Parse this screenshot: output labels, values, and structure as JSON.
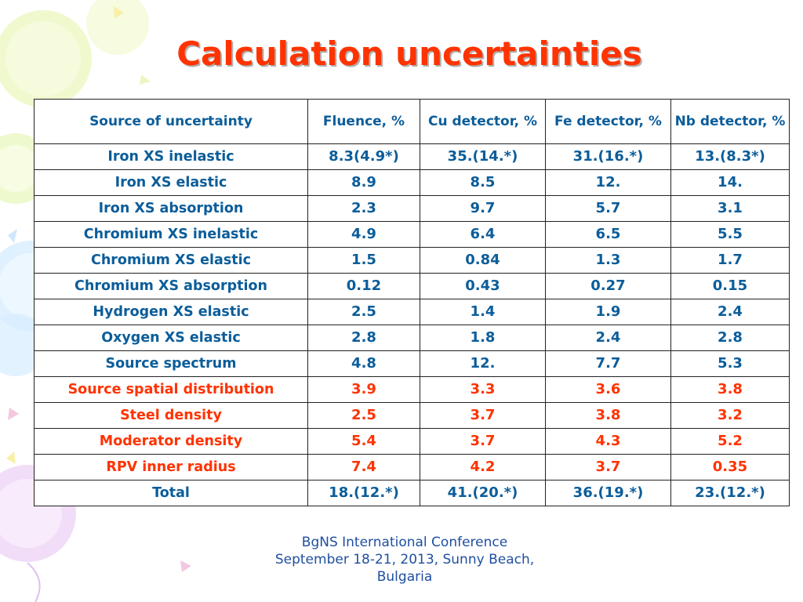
{
  "slide": {
    "title": "Calculation uncertainties"
  },
  "table": {
    "headers": [
      "Source of uncertainty",
      "Fluence, %",
      "Cu detector, %",
      "Fe detector, %",
      "Nb detector, %"
    ],
    "rows": [
      {
        "source": "Iron XS inelastic",
        "fluence": "8.3(4.9*)",
        "cu": "35.(14.*)",
        "fe": "31.(16.*)",
        "nb": "13.(8.3*)"
      },
      {
        "source": "Iron XS elastic",
        "fluence": "8.9",
        "cu": "8.5",
        "fe": "12.",
        "nb": "14."
      },
      {
        "source": "Iron XS absorption",
        "fluence": "2.3",
        "cu": "9.7",
        "fe": "5.7",
        "nb": "3.1"
      },
      {
        "source": "Chromium XS inelastic",
        "fluence": "4.9",
        "cu": "6.4",
        "fe": "6.5",
        "nb": "5.5"
      },
      {
        "source": "Chromium XS elastic",
        "fluence": "1.5",
        "cu": "0.84",
        "fe": "1.3",
        "nb": "1.7"
      },
      {
        "source": "Chromium XS absorption",
        "fluence": "0.12",
        "cu": "0.43",
        "fe": "0.27",
        "nb": "0.15"
      },
      {
        "source": "Hydrogen XS elastic",
        "fluence": "2.5",
        "cu": "1.4",
        "fe": "1.9",
        "nb": "2.4"
      },
      {
        "source": "Oxygen XS elastic",
        "fluence": "2.8",
        "cu": "1.8",
        "fe": "2.4",
        "nb": "2.8"
      },
      {
        "source": "Source spectrum",
        "fluence": "4.8",
        "cu": "12.",
        "fe": "7.7",
        "nb": "5.3"
      },
      {
        "source": "Source spatial distribution",
        "fluence": "3.9",
        "cu": "3.3",
        "fe": "3.6",
        "nb": "3.8"
      },
      {
        "source": "Steel density",
        "fluence": "2.5",
        "cu": "3.7",
        "fe": "3.8",
        "nb": "3.2"
      },
      {
        "source": "Moderator density",
        "fluence": "5.4",
        "cu": "3.7",
        "fe": "4.3",
        "nb": "5.2"
      },
      {
        "source": "RPV inner radius",
        "fluence": "7.4",
        "cu": "4.2",
        "fe": "3.7",
        "nb": "0.35"
      },
      {
        "source": "Total",
        "fluence": "18.(12.*)",
        "cu": "41.(20.*)",
        "fe": "36.(19.*)",
        "nb": "23.(12.*)"
      }
    ]
  },
  "footer": {
    "line1": "BgNS International Conference",
    "line2": "September 18-21, 2013, Sunny Beach,",
    "line3": "Bulgaria"
  },
  "colors": {
    "title": "#ff3300",
    "table_text": "#0b5d9a",
    "highlight_text": "#ff3300",
    "footer_text": "#1f4fa0"
  }
}
